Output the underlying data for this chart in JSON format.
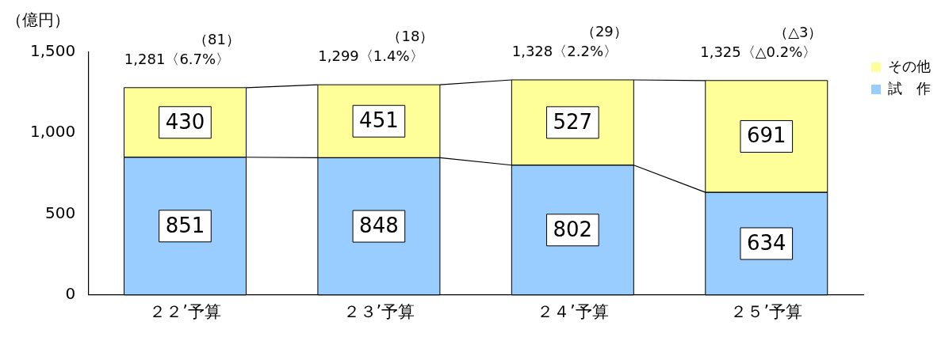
{
  "chart_data": {
    "type": "bar",
    "ylabel": "（億円）",
    "categories": [
      "２２’予算",
      "２３’予算",
      "２４’予算",
      "２５’予算"
    ],
    "series": [
      {
        "name": "試　作",
        "color": "#99ccff",
        "values": [
          851,
          848,
          802,
          634
        ]
      },
      {
        "name": "その他",
        "color": "#ffff99",
        "values": [
          430,
          451,
          527,
          691
        ]
      }
    ],
    "stacked": true,
    "data_labels": true,
    "totals": [
      "1,281〈6.7%〉",
      "1,299〈1.4%〉",
      "1,328〈2.2%〉",
      "1,325〈△0.2%〉"
    ],
    "annotations": [
      {
        "text": "（81）",
        "x": "２２’予算",
        "y": 1281
      },
      {
        "text": "（18）",
        "x": "２３’予算",
        "y": 1299
      },
      {
        "text": "（29）",
        "x": "２４’予算",
        "y": 1328
      },
      {
        "text": "（△3）",
        "x": "２５’予算",
        "y": 1325
      }
    ],
    "ylim": [
      0,
      1500
    ],
    "yticks": [
      0,
      {
        "value": 500,
        "label": "500"
      },
      {
        "value": 1000,
        "label": "1,000"
      },
      {
        "value": 1500,
        "label": "1,500"
      }
    ],
    "grid": false,
    "legend": "top right"
  }
}
